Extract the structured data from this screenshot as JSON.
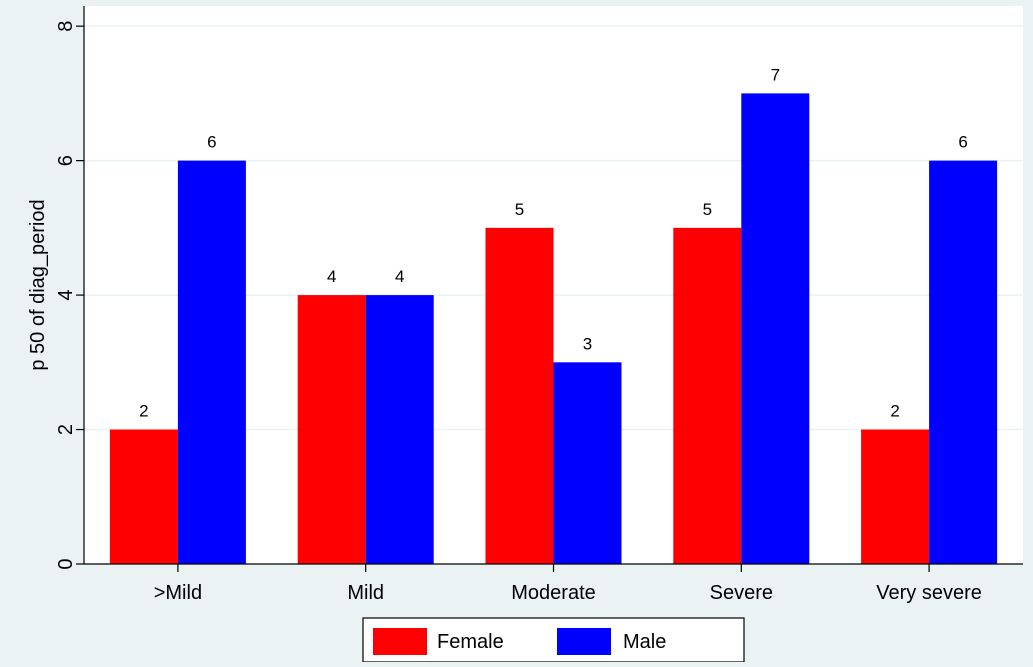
{
  "chart_data": {
    "type": "bar",
    "title": "",
    "xlabel": "",
    "ylabel": "p 50 of diag_period",
    "categories": [
      ">Mild",
      "Mild",
      "Moderate",
      "Severe",
      "Very severe"
    ],
    "series": [
      {
        "name": "Female",
        "values": [
          2,
          4,
          5,
          5,
          2
        ],
        "color": "#ff0000"
      },
      {
        "name": "Male",
        "values": [
          6,
          4,
          3,
          7,
          6
        ],
        "color": "#0000ff"
      }
    ],
    "ylim": [
      0,
      8.3
    ],
    "yticks": [
      0,
      2,
      4,
      6,
      8
    ],
    "grid": true,
    "data_labels": true,
    "legend_position": "bottom",
    "colors": {
      "background": "#eaf2f3",
      "plot_background": "#ffffff",
      "gridline": "#eaf2f3",
      "axis": "#000000"
    }
  }
}
